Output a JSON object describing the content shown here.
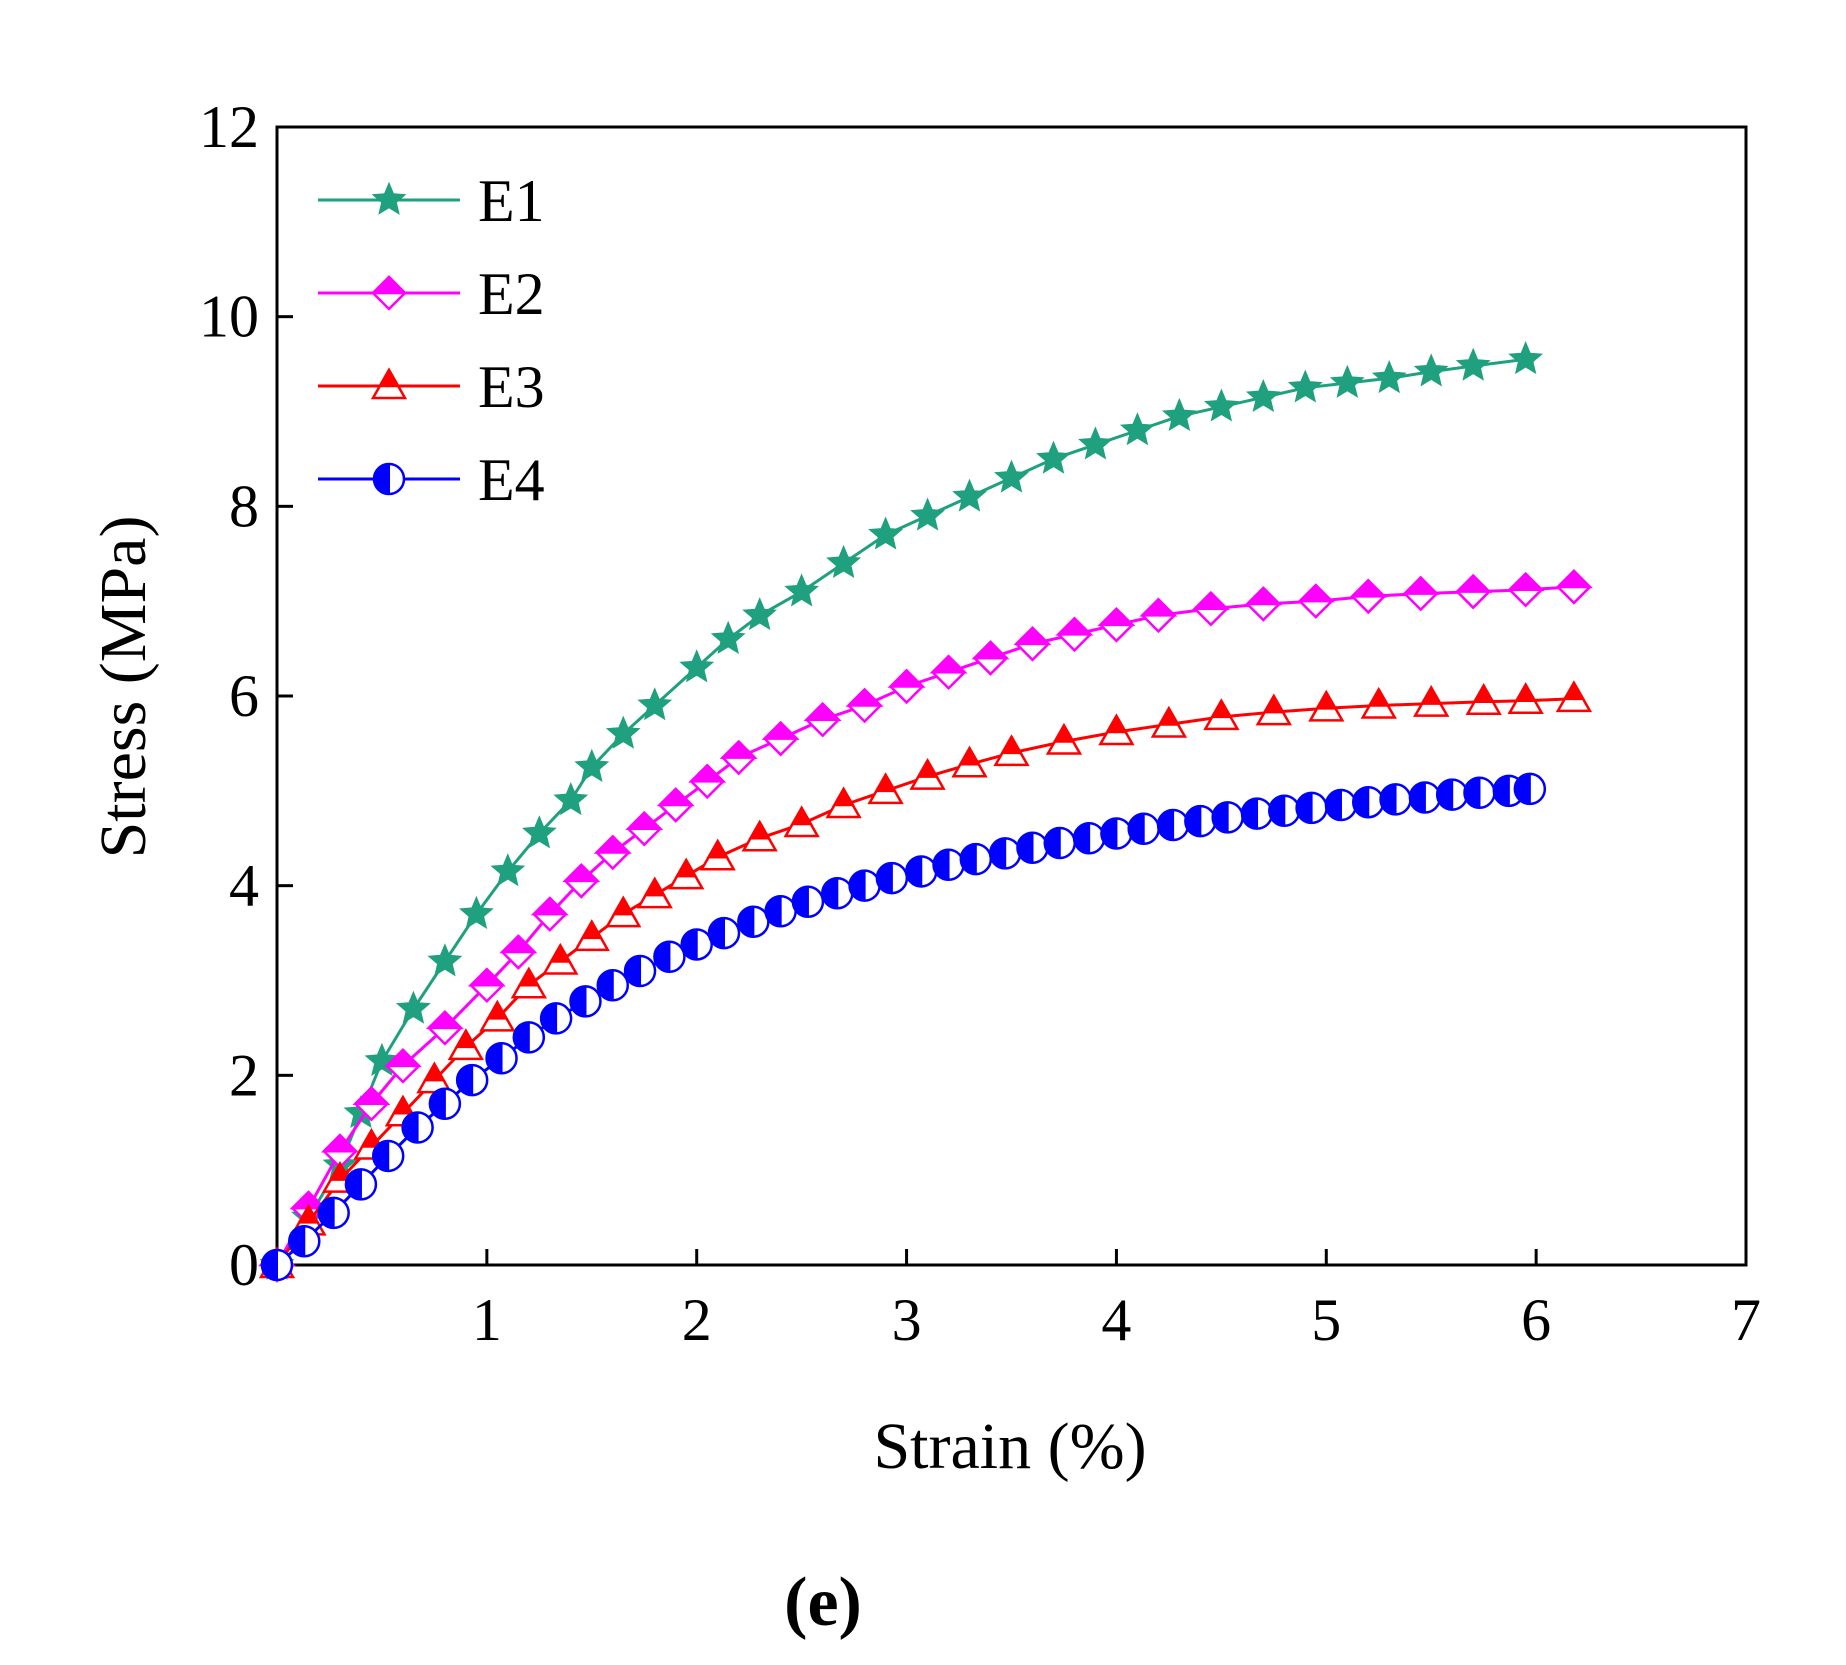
{
  "chart_data": {
    "type": "line",
    "title": "",
    "xlabel": "Strain (%)",
    "ylabel": "Stress (MPa)",
    "xlim": [
      0,
      7
    ],
    "ylim": [
      0,
      12
    ],
    "x_ticks": [
      "1",
      "2",
      "3",
      "4",
      "5",
      "6",
      "7"
    ],
    "y_ticks": [
      "0",
      "2",
      "4",
      "6",
      "8",
      "10",
      "12"
    ],
    "grid": false,
    "legend_position": "top-left",
    "series": [
      {
        "name": "E1",
        "color": "#1FA07E",
        "marker": "star",
        "points": [
          [
            0,
            0
          ],
          [
            0.15,
            0.5
          ],
          [
            0.3,
            1.05
          ],
          [
            0.4,
            1.6
          ],
          [
            0.5,
            2.15
          ],
          [
            0.65,
            2.7
          ],
          [
            0.8,
            3.2
          ],
          [
            0.95,
            3.7
          ],
          [
            1.1,
            4.15
          ],
          [
            1.25,
            4.55
          ],
          [
            1.4,
            4.9
          ],
          [
            1.5,
            5.25
          ],
          [
            1.65,
            5.6
          ],
          [
            1.8,
            5.9
          ],
          [
            2.0,
            6.3
          ],
          [
            2.15,
            6.6
          ],
          [
            2.3,
            6.85
          ],
          [
            2.5,
            7.1
          ],
          [
            2.7,
            7.4
          ],
          [
            2.9,
            7.7
          ],
          [
            3.1,
            7.9
          ],
          [
            3.3,
            8.1
          ],
          [
            3.5,
            8.3
          ],
          [
            3.7,
            8.5
          ],
          [
            3.9,
            8.65
          ],
          [
            4.1,
            8.8
          ],
          [
            4.3,
            8.95
          ],
          [
            4.5,
            9.05
          ],
          [
            4.7,
            9.15
          ],
          [
            4.9,
            9.25
          ],
          [
            5.1,
            9.3
          ],
          [
            5.3,
            9.35
          ],
          [
            5.5,
            9.42
          ],
          [
            5.7,
            9.48
          ],
          [
            5.95,
            9.55
          ]
        ]
      },
      {
        "name": "E2",
        "color": "#FF00FF",
        "marker": "diamond",
        "points": [
          [
            0,
            0
          ],
          [
            0.15,
            0.6
          ],
          [
            0.3,
            1.2
          ],
          [
            0.45,
            1.7
          ],
          [
            0.6,
            2.1
          ],
          [
            0.8,
            2.5
          ],
          [
            1.0,
            2.95
          ],
          [
            1.15,
            3.3
          ],
          [
            1.3,
            3.7
          ],
          [
            1.45,
            4.05
          ],
          [
            1.6,
            4.35
          ],
          [
            1.75,
            4.6
          ],
          [
            1.9,
            4.85
          ],
          [
            2.05,
            5.1
          ],
          [
            2.2,
            5.35
          ],
          [
            2.4,
            5.55
          ],
          [
            2.6,
            5.75
          ],
          [
            2.8,
            5.9
          ],
          [
            3.0,
            6.1
          ],
          [
            3.2,
            6.25
          ],
          [
            3.4,
            6.4
          ],
          [
            3.6,
            6.55
          ],
          [
            3.8,
            6.65
          ],
          [
            4.0,
            6.75
          ],
          [
            4.2,
            6.85
          ],
          [
            4.45,
            6.92
          ],
          [
            4.7,
            6.97
          ],
          [
            4.95,
            7.0
          ],
          [
            5.2,
            7.05
          ],
          [
            5.45,
            7.08
          ],
          [
            5.7,
            7.1
          ],
          [
            5.95,
            7.12
          ],
          [
            6.18,
            7.15
          ]
        ]
      },
      {
        "name": "E3",
        "color": "#FF0000",
        "marker": "triangle",
        "points": [
          [
            0,
            0
          ],
          [
            0.15,
            0.45
          ],
          [
            0.3,
            0.9
          ],
          [
            0.45,
            1.25
          ],
          [
            0.6,
            1.6
          ],
          [
            0.75,
            1.95
          ],
          [
            0.9,
            2.3
          ],
          [
            1.05,
            2.6
          ],
          [
            1.2,
            2.95
          ],
          [
            1.35,
            3.2
          ],
          [
            1.5,
            3.45
          ],
          [
            1.65,
            3.7
          ],
          [
            1.8,
            3.9
          ],
          [
            1.95,
            4.1
          ],
          [
            2.1,
            4.3
          ],
          [
            2.3,
            4.5
          ],
          [
            2.5,
            4.65
          ],
          [
            2.7,
            4.85
          ],
          [
            2.9,
            5.0
          ],
          [
            3.1,
            5.15
          ],
          [
            3.3,
            5.28
          ],
          [
            3.5,
            5.4
          ],
          [
            3.75,
            5.52
          ],
          [
            4.0,
            5.62
          ],
          [
            4.25,
            5.7
          ],
          [
            4.5,
            5.78
          ],
          [
            4.75,
            5.83
          ],
          [
            5.0,
            5.87
          ],
          [
            5.25,
            5.9
          ],
          [
            5.5,
            5.92
          ],
          [
            5.75,
            5.94
          ],
          [
            5.95,
            5.95
          ],
          [
            6.18,
            5.97
          ]
        ]
      },
      {
        "name": "E4",
        "color": "#0000FF",
        "marker": "half-circle",
        "points": [
          [
            0,
            0
          ],
          [
            0.13,
            0.25
          ],
          [
            0.27,
            0.55
          ],
          [
            0.4,
            0.85
          ],
          [
            0.53,
            1.15
          ],
          [
            0.67,
            1.45
          ],
          [
            0.8,
            1.7
          ],
          [
            0.93,
            1.95
          ],
          [
            1.07,
            2.18
          ],
          [
            1.2,
            2.4
          ],
          [
            1.33,
            2.6
          ],
          [
            1.47,
            2.78
          ],
          [
            1.6,
            2.95
          ],
          [
            1.73,
            3.1
          ],
          [
            1.87,
            3.25
          ],
          [
            2.0,
            3.38
          ],
          [
            2.13,
            3.5
          ],
          [
            2.27,
            3.62
          ],
          [
            2.4,
            3.73
          ],
          [
            2.53,
            3.83
          ],
          [
            2.67,
            3.92
          ],
          [
            2.8,
            4.0
          ],
          [
            2.93,
            4.08
          ],
          [
            3.07,
            4.15
          ],
          [
            3.2,
            4.22
          ],
          [
            3.33,
            4.28
          ],
          [
            3.47,
            4.34
          ],
          [
            3.6,
            4.4
          ],
          [
            3.73,
            4.45
          ],
          [
            3.87,
            4.5
          ],
          [
            4.0,
            4.55
          ],
          [
            4.13,
            4.6
          ],
          [
            4.27,
            4.64
          ],
          [
            4.4,
            4.68
          ],
          [
            4.53,
            4.72
          ],
          [
            4.67,
            4.76
          ],
          [
            4.8,
            4.79
          ],
          [
            4.93,
            4.82
          ],
          [
            5.07,
            4.85
          ],
          [
            5.2,
            4.88
          ],
          [
            5.33,
            4.91
          ],
          [
            5.47,
            4.93
          ],
          [
            5.6,
            4.96
          ],
          [
            5.73,
            4.98
          ],
          [
            5.87,
            5.0
          ],
          [
            5.97,
            5.02
          ]
        ]
      }
    ],
    "caption": "(e)"
  }
}
